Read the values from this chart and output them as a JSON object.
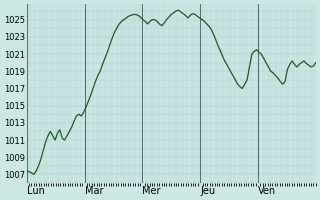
{
  "ylabel_ticks": [
    1007,
    1009,
    1011,
    1013,
    1015,
    1017,
    1019,
    1021,
    1023,
    1025
  ],
  "ylim": [
    1006.0,
    1026.8
  ],
  "xlim": [
    0,
    120
  ],
  "day_tick_positions": [
    0,
    24,
    48,
    72,
    96
  ],
  "day_labels": [
    "Lun",
    "Mar",
    "Mer",
    "Jeu",
    "Ven"
  ],
  "day_vlines": [
    0,
    24,
    48,
    72,
    96
  ],
  "bg_color": "#cce8e4",
  "grid_color": "#aacccc",
  "line_color": "#1a5c1a",
  "pressure_data": [
    1007.5,
    1007.3,
    1007.2,
    1007.0,
    1007.4,
    1008.0,
    1008.8,
    1009.8,
    1010.8,
    1011.5,
    1012.0,
    1011.5,
    1011.0,
    1011.8,
    1012.2,
    1011.2,
    1011.0,
    1011.5,
    1012.0,
    1012.5,
    1013.2,
    1013.8,
    1014.0,
    1013.8,
    1014.2,
    1014.8,
    1015.5,
    1016.2,
    1017.0,
    1017.8,
    1018.5,
    1019.0,
    1019.8,
    1020.5,
    1021.2,
    1022.0,
    1022.8,
    1023.5,
    1024.0,
    1024.5,
    1024.8,
    1025.0,
    1025.2,
    1025.4,
    1025.5,
    1025.6,
    1025.6,
    1025.5,
    1025.3,
    1025.0,
    1024.8,
    1024.5,
    1024.8,
    1025.0,
    1025.0,
    1024.8,
    1024.5,
    1024.3,
    1024.6,
    1025.0,
    1025.3,
    1025.6,
    1025.8,
    1026.0,
    1026.1,
    1025.9,
    1025.7,
    1025.5,
    1025.2,
    1025.5,
    1025.7,
    1025.6,
    1025.4,
    1025.2,
    1025.0,
    1024.8,
    1024.5,
    1024.2,
    1023.8,
    1023.2,
    1022.5,
    1021.8,
    1021.2,
    1020.5,
    1020.0,
    1019.5,
    1019.0,
    1018.5,
    1018.0,
    1017.5,
    1017.2,
    1017.0,
    1017.5,
    1018.0,
    1019.5,
    1021.0,
    1021.3,
    1021.5,
    1021.2,
    1021.0,
    1020.5,
    1020.0,
    1019.5,
    1019.0,
    1018.8,
    1018.5,
    1018.2,
    1017.8,
    1017.5,
    1017.8,
    1019.2,
    1019.8,
    1020.2,
    1019.8,
    1019.5,
    1019.8,
    1020.0,
    1020.2,
    1019.9,
    1019.7,
    1019.5,
    1019.6,
    1020.0
  ]
}
